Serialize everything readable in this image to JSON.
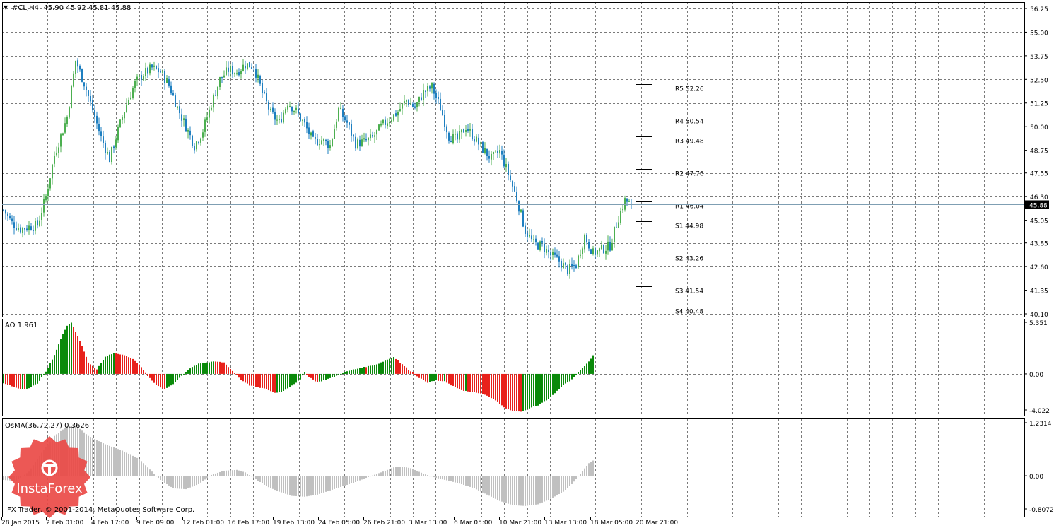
{
  "header": {
    "symbol_line": "#CL,H4  45.90 45.92 45.81 45.88",
    "ao_label": "AO 1.961",
    "osma_label": "OsMA(36,72,27) 0.3626",
    "copyright": "IFX Trader, © 2001-2014, MetaQuotes Software Corp.",
    "logo_text": "InstaForex"
  },
  "colors": {
    "bull_candle": "#4CAF50",
    "bear_candle": "#1E7FC0",
    "ao_up": "#0A8A0A",
    "ao_down": "#E8211B",
    "osma": "#C0C0C0",
    "grid": "#7A7A7A",
    "logo": "#EA4A47"
  },
  "chart_data": [
    {
      "type": "candlestick",
      "name": "#CL,H4",
      "price_ticks": [
        "56.25",
        "55.00",
        "53.75",
        "52.50",
        "51.25",
        "50.00",
        "48.75",
        "47.55",
        "46.30",
        "45.05",
        "43.85",
        "42.60",
        "41.35",
        "40.10"
      ],
      "ylim": [
        40.1,
        56.25
      ],
      "last_price": "45.88",
      "ohlc_last": {
        "open": 45.9,
        "high": 45.92,
        "low": 45.81,
        "close": 45.88
      },
      "close_path": [
        [
          0,
          45.6
        ],
        [
          4,
          44.9
        ],
        [
          8,
          44.6
        ],
        [
          12,
          44.7
        ],
        [
          16,
          44.8
        ],
        [
          20,
          46.3
        ],
        [
          24,
          48.5
        ],
        [
          30,
          50.5
        ],
        [
          34,
          53.5
        ],
        [
          38,
          52.3
        ],
        [
          42,
          50.9
        ],
        [
          46,
          49.4
        ],
        [
          50,
          48.3
        ],
        [
          54,
          49.8
        ],
        [
          58,
          51.2
        ],
        [
          62,
          52.3
        ],
        [
          66,
          52.8
        ],
        [
          70,
          53.1
        ],
        [
          74,
          52.9
        ],
        [
          78,
          52.2
        ],
        [
          82,
          51.0
        ],
        [
          86,
          50.0
        ],
        [
          90,
          49.0
        ],
        [
          94,
          49.8
        ],
        [
          98,
          51.2
        ],
        [
          102,
          52.5
        ],
        [
          106,
          53.0
        ],
        [
          110,
          52.9
        ],
        [
          114,
          53.3
        ],
        [
          118,
          53.2
        ],
        [
          122,
          51.8
        ],
        [
          126,
          50.7
        ],
        [
          130,
          50.2
        ],
        [
          134,
          51.3
        ],
        [
          138,
          50.8
        ],
        [
          142,
          50.1
        ],
        [
          146,
          49.2
        ],
        [
          150,
          49.3
        ],
        [
          154,
          49.0
        ],
        [
          158,
          50.9
        ],
        [
          162,
          50.2
        ],
        [
          166,
          49.1
        ],
        [
          170,
          49.2
        ],
        [
          174,
          49.4
        ],
        [
          178,
          50.0
        ],
        [
          182,
          50.4
        ],
        [
          186,
          50.8
        ],
        [
          190,
          51.4
        ],
        [
          194,
          51.0
        ],
        [
          198,
          51.8
        ],
        [
          202,
          52.1
        ],
        [
          206,
          51.0
        ],
        [
          210,
          49.5
        ],
        [
          214,
          49.3
        ],
        [
          218,
          50.0
        ],
        [
          222,
          49.4
        ],
        [
          226,
          48.8
        ],
        [
          230,
          48.3
        ],
        [
          234,
          48.7
        ],
        [
          238,
          47.5
        ],
        [
          242,
          46.2
        ],
        [
          246,
          44.5
        ],
        [
          250,
          43.8
        ],
        [
          254,
          43.7
        ],
        [
          258,
          43.2
        ],
        [
          262,
          42.9
        ],
        [
          266,
          42.4
        ],
        [
          270,
          42.7
        ],
        [
          274,
          44.2
        ],
        [
          278,
          43.3
        ],
        [
          282,
          43.5
        ],
        [
          286,
          43.7
        ],
        [
          290,
          45.2
        ],
        [
          293,
          46.1
        ],
        [
          296,
          45.88
        ]
      ],
      "pivot_levels": [
        {
          "label": "R5 52.26",
          "price": 52.26
        },
        {
          "label": "R4 50.54",
          "price": 50.54
        },
        {
          "label": "R3 49.48",
          "price": 49.48
        },
        {
          "label": "R2 47.76",
          "price": 47.76
        },
        {
          "label": "R1 46.04",
          "price": 46.04
        },
        {
          "label": "S1 44.98",
          "price": 44.98
        },
        {
          "label": "S2 43.26",
          "price": 43.26
        },
        {
          "label": "S3 41.54",
          "price": 41.54
        },
        {
          "label": "S4 40.48",
          "price": 40.48
        }
      ],
      "x_tick_labels": [
        "28 Jan 2015",
        "2 Feb 01:00",
        "4 Feb 17:00",
        "9 Feb 09:00",
        "12 Feb 01:00",
        "16 Feb 17:00",
        "19 Feb 13:00",
        "24 Feb 05:00",
        "26 Feb 21:00",
        "3 Mar 13:00",
        "6 Mar 05:00",
        "10 Mar 21:00",
        "13 Mar 13:00",
        "18 Mar 05:00",
        "20 Mar 21:00"
      ]
    },
    {
      "type": "bar",
      "name": "AO",
      "value": 1.961,
      "y_ticks": [
        "5.351",
        "0.00",
        "-4.022"
      ],
      "ylim": [
        -4.022,
        5.351
      ],
      "path": [
        [
          0,
          -1.0
        ],
        [
          4,
          -1.3
        ],
        [
          8,
          -1.6
        ],
        [
          12,
          -1.5
        ],
        [
          16,
          -1.0
        ],
        [
          20,
          0.2
        ],
        [
          24,
          2.0
        ],
        [
          28,
          4.2
        ],
        [
          30,
          5.1
        ],
        [
          32,
          5.4
        ],
        [
          36,
          3.5
        ],
        [
          40,
          1.2
        ],
        [
          44,
          0.5
        ],
        [
          48,
          1.8
        ],
        [
          52,
          2.2
        ],
        [
          56,
          2.0
        ],
        [
          60,
          1.7
        ],
        [
          64,
          1.0
        ],
        [
          68,
          -0.2
        ],
        [
          72,
          -1.2
        ],
        [
          76,
          -1.6
        ],
        [
          80,
          -1.1
        ],
        [
          84,
          -0.2
        ],
        [
          88,
          0.6
        ],
        [
          92,
          1.1
        ],
        [
          96,
          1.2
        ],
        [
          100,
          1.3
        ],
        [
          104,
          1.2
        ],
        [
          108,
          0.3
        ],
        [
          112,
          -0.6
        ],
        [
          116,
          -1.2
        ],
        [
          120,
          -1.4
        ],
        [
          124,
          -1.6
        ],
        [
          128,
          -2.0
        ],
        [
          132,
          -1.8
        ],
        [
          136,
          -1.2
        ],
        [
          140,
          -0.6
        ],
        [
          142,
          0.2
        ],
        [
          144,
          -0.3
        ],
        [
          148,
          -0.9
        ],
        [
          152,
          -0.6
        ],
        [
          156,
          -0.3
        ],
        [
          160,
          0.1
        ],
        [
          164,
          0.4
        ],
        [
          168,
          0.6
        ],
        [
          172,
          0.8
        ],
        [
          176,
          1.0
        ],
        [
          180,
          1.4
        ],
        [
          184,
          1.8
        ],
        [
          188,
          1.0
        ],
        [
          192,
          0.3
        ],
        [
          196,
          -0.4
        ],
        [
          200,
          -0.9
        ],
        [
          204,
          -0.7
        ],
        [
          208,
          -0.8
        ],
        [
          212,
          -1.3
        ],
        [
          216,
          -1.7
        ],
        [
          220,
          -1.9
        ],
        [
          224,
          -2.0
        ],
        [
          228,
          -2.3
        ],
        [
          232,
          -2.8
        ],
        [
          236,
          -3.5
        ],
        [
          240,
          -3.9
        ],
        [
          244,
          -4.0
        ],
        [
          248,
          -3.6
        ],
        [
          252,
          -3.3
        ],
        [
          256,
          -2.8
        ],
        [
          260,
          -2.0
        ],
        [
          264,
          -1.2
        ],
        [
          268,
          -0.6
        ],
        [
          272,
          0.4
        ],
        [
          276,
          1.3
        ],
        [
          278,
          1.961
        ]
      ]
    },
    {
      "type": "bar",
      "name": "OsMA(36,72,27)",
      "value": 0.3626,
      "y_ticks": [
        "1.2314",
        "0.00",
        "-0.8072"
      ],
      "ylim": [
        -0.8072,
        1.2314
      ],
      "path": [
        [
          0,
          -0.1
        ],
        [
          6,
          -0.12
        ],
        [
          12,
          0.1
        ],
        [
          18,
          0.55
        ],
        [
          24,
          0.95
        ],
        [
          30,
          1.18
        ],
        [
          34,
          1.2
        ],
        [
          40,
          0.95
        ],
        [
          48,
          0.75
        ],
        [
          56,
          0.6
        ],
        [
          64,
          0.4
        ],
        [
          70,
          0.1
        ],
        [
          74,
          -0.1
        ],
        [
          80,
          -0.3
        ],
        [
          86,
          -0.32
        ],
        [
          92,
          -0.2
        ],
        [
          98,
          0.02
        ],
        [
          104,
          0.12
        ],
        [
          110,
          0.14
        ],
        [
          114,
          0.08
        ],
        [
          118,
          -0.05
        ],
        [
          124,
          -0.25
        ],
        [
          130,
          -0.38
        ],
        [
          136,
          -0.48
        ],
        [
          142,
          -0.5
        ],
        [
          148,
          -0.45
        ],
        [
          154,
          -0.35
        ],
        [
          160,
          -0.25
        ],
        [
          166,
          -0.15
        ],
        [
          172,
          -0.03
        ],
        [
          178,
          0.08
        ],
        [
          184,
          0.2
        ],
        [
          188,
          0.22
        ],
        [
          192,
          0.18
        ],
        [
          198,
          0.05
        ],
        [
          204,
          -0.05
        ],
        [
          210,
          -0.12
        ],
        [
          216,
          -0.2
        ],
        [
          222,
          -0.3
        ],
        [
          228,
          -0.45
        ],
        [
          234,
          -0.6
        ],
        [
          240,
          -0.7
        ],
        [
          246,
          -0.72
        ],
        [
          252,
          -0.68
        ],
        [
          258,
          -0.55
        ],
        [
          264,
          -0.38
        ],
        [
          268,
          -0.2
        ],
        [
          272,
          0.05
        ],
        [
          276,
          0.3
        ],
        [
          278,
          0.3626
        ]
      ]
    }
  ]
}
